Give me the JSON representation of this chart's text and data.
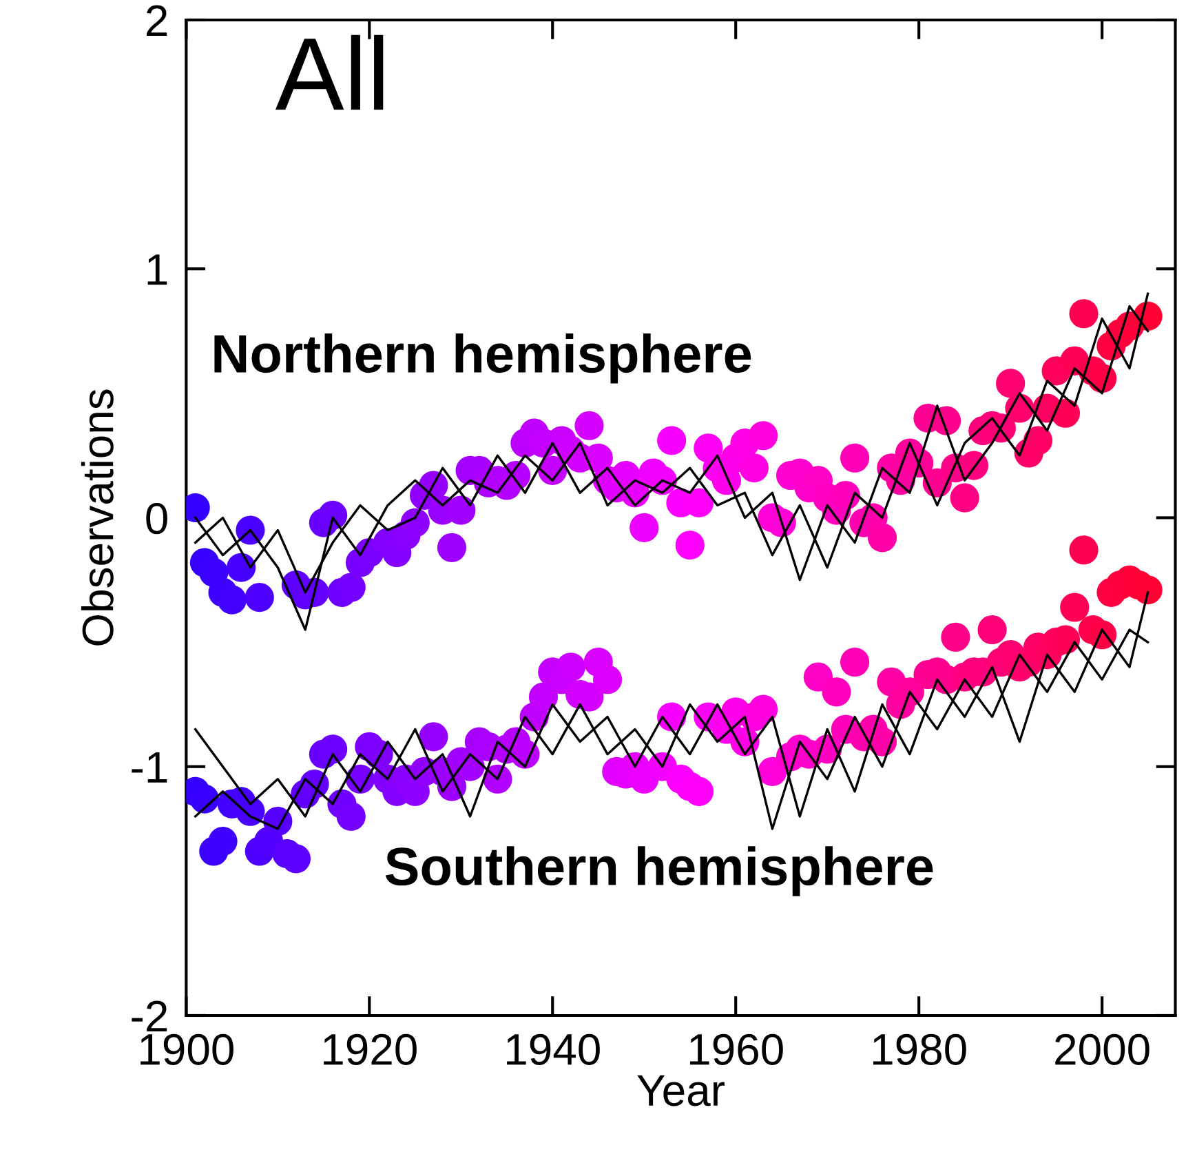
{
  "chart_data": {
    "type": "scatter",
    "title": "All",
    "xlabel": "Year",
    "ylabel": "Observations",
    "xlim": [
      1900,
      2008
    ],
    "xticks": [
      1900,
      1920,
      1940,
      1960,
      1980,
      2000
    ],
    "ylim": [
      -2,
      2
    ],
    "yticks": [
      -2,
      -1,
      0,
      1,
      2
    ],
    "grid": false,
    "legend": false,
    "annotations": [
      "Northern hemisphere",
      "Southern hemisphere"
    ],
    "series": [
      {
        "type": "line",
        "color": "#000000",
        "line_style": "solid",
        "x": [
          1901,
          1904,
          1907,
          1910,
          1913,
          1916,
          1919,
          1922,
          1925,
          1928,
          1931,
          1934,
          1937,
          1940,
          1943,
          1946,
          1949,
          1952,
          1955,
          1958,
          1961,
          1964,
          1967,
          1970,
          1973,
          1976,
          1979,
          1982,
          1985,
          1988,
          1991,
          1994,
          1997,
          2000,
          2003,
          2005
        ],
        "values": [
          0.0,
          -0.15,
          -0.05,
          -0.2,
          -0.45,
          0.0,
          -0.15,
          0.05,
          0.15,
          0.05,
          0.15,
          0.1,
          0.25,
          0.15,
          0.3,
          0.05,
          0.15,
          0.1,
          0.2,
          0.05,
          0.1,
          -0.15,
          0.05,
          -0.2,
          0.1,
          0.0,
          0.3,
          0.05,
          0.3,
          0.4,
          0.25,
          0.55,
          0.45,
          0.8,
          0.6,
          0.9
        ]
      },
      {
        "type": "line",
        "color": "#000000",
        "line_style": "solid",
        "x": [
          1901,
          1904,
          1907,
          1910,
          1913,
          1916,
          1919,
          1922,
          1925,
          1928,
          1931,
          1934,
          1937,
          1940,
          1943,
          1946,
          1949,
          1952,
          1955,
          1958,
          1961,
          1964,
          1967,
          1970,
          1973,
          1976,
          1979,
          1982,
          1985,
          1988,
          1991,
          1994,
          1997,
          2000,
          2003,
          2005
        ],
        "values": [
          -0.1,
          0.0,
          -0.2,
          -0.05,
          -0.3,
          -0.1,
          0.05,
          -0.05,
          0.0,
          0.2,
          0.05,
          0.25,
          0.1,
          0.3,
          0.1,
          0.2,
          0.05,
          0.15,
          0.1,
          0.25,
          0.0,
          0.1,
          -0.25,
          0.05,
          -0.1,
          0.2,
          0.1,
          0.45,
          0.15,
          0.3,
          0.5,
          0.35,
          0.6,
          0.5,
          0.85,
          0.75
        ]
      },
      {
        "type": "line",
        "color": "#000000",
        "line_style": "solid",
        "x": [
          1901,
          1904,
          1907,
          1910,
          1913,
          1916,
          1919,
          1922,
          1925,
          1928,
          1931,
          1934,
          1937,
          1940,
          1943,
          1946,
          1949,
          1952,
          1955,
          1958,
          1961,
          1964,
          1967,
          1970,
          1973,
          1976,
          1979,
          1982,
          1985,
          1988,
          1991,
          1994,
          1997,
          2000,
          2003,
          2005
        ],
        "values": [
          -0.85,
          -1.0,
          -1.15,
          -1.05,
          -1.2,
          -0.95,
          -1.1,
          -0.9,
          -1.05,
          -0.95,
          -1.2,
          -0.9,
          -1.0,
          -0.75,
          -0.9,
          -0.8,
          -1.0,
          -0.8,
          -0.95,
          -0.75,
          -0.95,
          -0.8,
          -1.2,
          -0.85,
          -1.1,
          -0.75,
          -0.95,
          -0.65,
          -0.8,
          -0.6,
          -0.9,
          -0.55,
          -0.7,
          -0.45,
          -0.6,
          -0.3
        ]
      },
      {
        "type": "line",
        "color": "#000000",
        "line_style": "solid",
        "x": [
          1901,
          1904,
          1907,
          1910,
          1913,
          1916,
          1919,
          1922,
          1925,
          1928,
          1931,
          1934,
          1937,
          1940,
          1943,
          1946,
          1949,
          1952,
          1955,
          1958,
          1961,
          1964,
          1967,
          1970,
          1973,
          1976,
          1979,
          1982,
          1985,
          1988,
          1991,
          1994,
          1997,
          2000,
          2003,
          2005
        ],
        "values": [
          -1.2,
          -1.1,
          -1.2,
          -1.25,
          -1.05,
          -1.15,
          -0.95,
          -1.05,
          -0.85,
          -1.1,
          -0.95,
          -1.05,
          -0.8,
          -0.95,
          -0.75,
          -0.95,
          -0.85,
          -1.0,
          -0.75,
          -0.9,
          -0.8,
          -1.25,
          -0.9,
          -1.05,
          -0.8,
          -1.0,
          -0.7,
          -0.85,
          -0.65,
          -0.8,
          -0.55,
          -0.7,
          -0.5,
          -0.65,
          -0.45,
          -0.5
        ]
      },
      {
        "type": "scatter",
        "marker": "circle",
        "x": [
          1901,
          1902,
          1903,
          1904,
          1905,
          1906,
          1907,
          1908,
          1909,
          1910,
          1911,
          1912,
          1913,
          1914,
          1915,
          1916,
          1917,
          1918,
          1919,
          1920,
          1921,
          1922,
          1923,
          1924,
          1925,
          1926,
          1927,
          1928,
          1929,
          1930,
          1931,
          1932,
          1933,
          1934,
          1935,
          1936,
          1937,
          1938,
          1939,
          1940,
          1941,
          1942,
          1943,
          1944,
          1945,
          1946,
          1947,
          1948,
          1949,
          1950,
          1951,
          1952,
          1953,
          1954,
          1955,
          1956,
          1957,
          1958,
          1959,
          1960,
          1961,
          1962,
          1963,
          1964,
          1965,
          1966,
          1967,
          1968,
          1969,
          1970,
          1971,
          1972,
          1973,
          1974,
          1975,
          1976,
          1977,
          1978,
          1979,
          1980,
          1981,
          1982,
          1983,
          1984,
          1985,
          1986,
          1987,
          1988,
          1989,
          1990,
          1991,
          1992,
          1993,
          1994,
          1995,
          1996,
          1997,
          1998,
          1999,
          2000,
          2001,
          2002,
          2003,
          2004,
          2005
        ],
        "values": [
          0.04,
          -0.18,
          -0.22,
          -0.3,
          -0.33,
          -0.2,
          -0.05,
          -0.32,
          null,
          null,
          null,
          -0.27,
          -0.31,
          -0.3,
          -0.02,
          0.01,
          -0.3,
          -0.28,
          -0.18,
          -0.14,
          null,
          -0.1,
          -0.14,
          -0.07,
          -0.02,
          0.09,
          0.13,
          0.03,
          -0.12,
          0.03,
          0.19,
          0.19,
          0.14,
          0.15,
          0.13,
          0.17,
          0.3,
          0.34,
          0.3,
          0.19,
          0.31,
          0.27,
          0.24,
          0.37,
          0.24,
          0.15,
          0.12,
          0.17,
          0.1,
          -0.04,
          0.18,
          0.15,
          0.31,
          0.06,
          -0.11,
          0.06,
          0.28,
          0.2,
          0.15,
          0.24,
          0.3,
          0.2,
          0.33,
          0.0,
          -0.02,
          0.17,
          0.18,
          0.12,
          0.15,
          0.08,
          0.03,
          0.09,
          0.24,
          -0.02,
          0.0,
          -0.08,
          0.2,
          0.15,
          0.26,
          0.22,
          0.4,
          0.14,
          0.39,
          0.2,
          0.08,
          0.21,
          0.35,
          0.37,
          0.36,
          0.54,
          0.44,
          0.26,
          0.31,
          0.44,
          0.59,
          0.42,
          0.63,
          0.82,
          0.59,
          0.56,
          0.69,
          0.74,
          0.77,
          null,
          0.81
        ],
        "colors": [
          "#3300ff",
          "#3700ff",
          "#3b00ff",
          "#3e00ff",
          "#4200ff",
          "#4600ff",
          "#4a00ff",
          "#4d00ff",
          "#5100ff",
          "#5500ff",
          "#5900ff",
          "#5d00ff",
          "#6000ff",
          "#6400ff",
          "#6800ff",
          "#6c00ff",
          "#6f00ff",
          "#7300ff",
          "#7700ff",
          "#7b00ff",
          "#7f00ff",
          "#8200ff",
          "#8600ff",
          "#8a00ff",
          "#8e00ff",
          "#9100ff",
          "#9500ff",
          "#9900ff",
          "#9d00ff",
          "#a100ff",
          "#a400ff",
          "#a800ff",
          "#ac00ff",
          "#b000ff",
          "#b300ff",
          "#b700ff",
          "#bb00ff",
          "#bf00ff",
          "#c300ff",
          "#c600ff",
          "#ca00ff",
          "#ce00ff",
          "#d200ff",
          "#d500ff",
          "#d900ff",
          "#dd00ff",
          "#e100ff",
          "#e500ff",
          "#e800ff",
          "#ec00ff",
          "#f000ff",
          "#f400ff",
          "#f700ff",
          "#fb00ff",
          "#ff00ff",
          "#ff00fb",
          "#ff00f7",
          "#ff00f3",
          "#ff00ef",
          "#ff00eb",
          "#ff00e7",
          "#ff00e2",
          "#ff00de",
          "#ff00da",
          "#ff00d6",
          "#ff00d2",
          "#ff00ce",
          "#ff00ca",
          "#ff00c6",
          "#ff00c2",
          "#ff00be",
          "#ff00ba",
          "#ff00b6",
          "#ff00b1",
          "#ff00ad",
          "#ff00a9",
          "#ff00a5",
          "#ff00a1",
          "#ff009d",
          "#ff0099",
          "#ff0095",
          "#ff0091",
          "#ff008d",
          "#ff0089",
          "#ff0085",
          "#ff0081",
          "#ff007c",
          "#ff0078",
          "#ff0074",
          "#ff0070",
          "#ff006c",
          "#ff0068",
          "#ff0064",
          "#ff0060",
          "#ff005c",
          "#ff0058",
          "#ff0054",
          "#ff0050",
          "#ff004c",
          "#ff0047",
          "#ff0043",
          "#ff003f",
          "#ff003b",
          "#ff0037",
          "#ff0033"
        ]
      },
      {
        "type": "scatter",
        "marker": "circle",
        "x": [
          1901,
          1902,
          1903,
          1904,
          1905,
          1906,
          1907,
          1908,
          1909,
          1910,
          1911,
          1912,
          1913,
          1914,
          1915,
          1916,
          1917,
          1918,
          1919,
          1920,
          1921,
          1922,
          1923,
          1924,
          1925,
          1926,
          1927,
          1928,
          1929,
          1930,
          1931,
          1932,
          1933,
          1934,
          1935,
          1936,
          1937,
          1938,
          1939,
          1940,
          1941,
          1942,
          1943,
          1944,
          1945,
          1946,
          1947,
          1948,
          1949,
          1950,
          1951,
          1952,
          1953,
          1954,
          1955,
          1956,
          1957,
          1958,
          1959,
          1960,
          1961,
          1962,
          1963,
          1964,
          1965,
          1966,
          1967,
          1968,
          1969,
          1970,
          1971,
          1972,
          1973,
          1974,
          1975,
          1976,
          1977,
          1978,
          1979,
          1980,
          1981,
          1982,
          1983,
          1984,
          1985,
          1986,
          1987,
          1988,
          1989,
          1990,
          1991,
          1992,
          1993,
          1994,
          1995,
          1996,
          1997,
          1998,
          1999,
          2000,
          2001,
          2002,
          2003,
          2004,
          2005
        ],
        "values": [
          -1.1,
          -1.13,
          -1.34,
          -1.3,
          -1.15,
          -1.14,
          -1.18,
          -1.34,
          -1.3,
          -1.22,
          -1.35,
          -1.37,
          -1.11,
          -1.07,
          -0.95,
          -0.93,
          -1.15,
          -1.2,
          -1.05,
          -0.92,
          -0.95,
          -1.05,
          -1.1,
          -1.05,
          -1.1,
          -1.02,
          -0.88,
          -1.02,
          -1.08,
          -0.98,
          -1.0,
          -0.9,
          -0.92,
          -1.05,
          -0.93,
          -0.9,
          -0.95,
          -0.8,
          -0.72,
          -0.62,
          -0.65,
          -0.6,
          -0.71,
          -0.72,
          -0.58,
          -0.65,
          -1.02,
          -1.03,
          -1.0,
          -1.05,
          null,
          -1.0,
          -0.8,
          -1.05,
          -1.08,
          -1.1,
          -0.8,
          null,
          -0.85,
          -0.78,
          -0.9,
          -0.8,
          -0.77,
          -1.02,
          null,
          -0.96,
          -0.93,
          -0.95,
          -0.64,
          -0.93,
          -0.7,
          -0.85,
          -0.58,
          -0.88,
          -0.85,
          -0.9,
          -0.66,
          -0.75,
          -0.7,
          null,
          -0.63,
          -0.62,
          -0.65,
          -0.48,
          -0.64,
          -0.62,
          -0.62,
          -0.45,
          -0.58,
          -0.55,
          -0.6,
          -0.58,
          -0.52,
          -0.55,
          -0.5,
          -0.49,
          -0.36,
          -0.13,
          -0.45,
          -0.47,
          -0.3,
          -0.27,
          -0.25,
          -0.27,
          -0.29
        ],
        "colors": [
          "#3300ff",
          "#3700ff",
          "#3b00ff",
          "#3e00ff",
          "#4200ff",
          "#4600ff",
          "#4a00ff",
          "#4d00ff",
          "#5100ff",
          "#5500ff",
          "#5900ff",
          "#5d00ff",
          "#6000ff",
          "#6400ff",
          "#6800ff",
          "#6c00ff",
          "#6f00ff",
          "#7300ff",
          "#7700ff",
          "#7b00ff",
          "#7f00ff",
          "#8200ff",
          "#8600ff",
          "#8a00ff",
          "#8e00ff",
          "#9100ff",
          "#9500ff",
          "#9900ff",
          "#9d00ff",
          "#a100ff",
          "#a400ff",
          "#a800ff",
          "#ac00ff",
          "#b000ff",
          "#b300ff",
          "#b700ff",
          "#bb00ff",
          "#bf00ff",
          "#c300ff",
          "#c600ff",
          "#ca00ff",
          "#ce00ff",
          "#d200ff",
          "#d500ff",
          "#d900ff",
          "#dd00ff",
          "#e100ff",
          "#e500ff",
          "#e800ff",
          "#ec00ff",
          "#f000ff",
          "#f400ff",
          "#f700ff",
          "#fb00ff",
          "#ff00ff",
          "#ff00fb",
          "#ff00f7",
          "#ff00f3",
          "#ff00ef",
          "#ff00eb",
          "#ff00e7",
          "#ff00e2",
          "#ff00de",
          "#ff00da",
          "#ff00d6",
          "#ff00d2",
          "#ff00ce",
          "#ff00ca",
          "#ff00c6",
          "#ff00c2",
          "#ff00be",
          "#ff00ba",
          "#ff00b6",
          "#ff00b1",
          "#ff00ad",
          "#ff00a9",
          "#ff00a5",
          "#ff00a1",
          "#ff009d",
          "#ff0099",
          "#ff0095",
          "#ff0091",
          "#ff008d",
          "#ff0089",
          "#ff0085",
          "#ff0081",
          "#ff007c",
          "#ff0078",
          "#ff0074",
          "#ff0070",
          "#ff006c",
          "#ff0068",
          "#ff0064",
          "#ff0060",
          "#ff005c",
          "#ff0058",
          "#ff0054",
          "#ff0050",
          "#ff004c",
          "#ff0047",
          "#ff0043",
          "#ff003f",
          "#ff003b",
          "#ff0037",
          "#ff0033"
        ]
      }
    ]
  }
}
